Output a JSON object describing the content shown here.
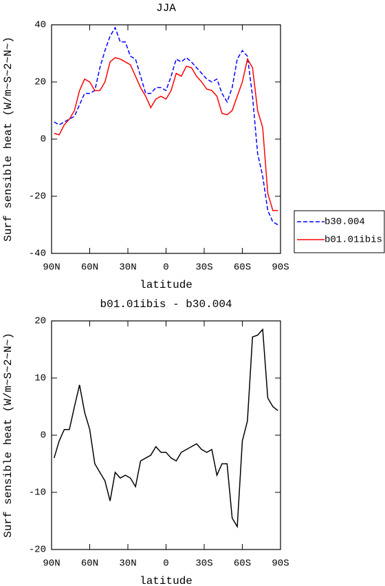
{
  "chart_data": [
    {
      "type": "line",
      "title": "JJA",
      "xlabel": "latitude",
      "ylabel": "Surf sensible heat (W/m~S~2~N~)",
      "x": [
        88,
        84,
        80,
        76,
        72,
        68,
        64,
        60,
        56,
        52,
        48,
        44,
        40,
        36,
        32,
        28,
        24,
        20,
        16,
        12,
        8,
        4,
        0,
        -4,
        -8,
        -12,
        -16,
        -20,
        -24,
        -28,
        -32,
        -36,
        -40,
        -44,
        -48,
        -52,
        -56,
        -60,
        -64,
        -68,
        -72,
        -76,
        -80,
        -84,
        -88
      ],
      "xlim": [
        90,
        -90
      ],
      "xticks": [
        {
          "value": 90,
          "label": "90N"
        },
        {
          "value": 60,
          "label": "60N"
        },
        {
          "value": 30,
          "label": "30N"
        },
        0,
        {
          "value": -30,
          "label": "30S"
        },
        {
          "value": -60,
          "label": "60S"
        },
        {
          "value": -90,
          "label": "90S"
        }
      ],
      "ylim": [
        -40,
        40
      ],
      "yticks": [
        -40,
        -20,
        0,
        20,
        40
      ],
      "legend": "right",
      "series": [
        {
          "name": "b30.004",
          "color": "#0000ff",
          "dash": true,
          "values": [
            6,
            5,
            6,
            7,
            8,
            12,
            16,
            16,
            17,
            25,
            31,
            36,
            39,
            34,
            34,
            29,
            28,
            22,
            16,
            16,
            18,
            18,
            17,
            22,
            28,
            27,
            28.5,
            27,
            25,
            23,
            21,
            20,
            21,
            16,
            13,
            18,
            28,
            31,
            29,
            15,
            -5,
            -13,
            -25,
            -29,
            -30
          ]
        },
        {
          "name": "b01.01ibis",
          "color": "#ff0000",
          "dash": false,
          "values": [
            2,
            1.5,
            5,
            7,
            10,
            17,
            21,
            20,
            17,
            17,
            20,
            27,
            28.5,
            28,
            27,
            26,
            22,
            18,
            15,
            11,
            14,
            15,
            14,
            17,
            23,
            22,
            25.5,
            25,
            22,
            20,
            17.5,
            17,
            15,
            9,
            8.5,
            10,
            15,
            20,
            28,
            25,
            10,
            4,
            -19,
            -25,
            -25
          ]
        }
      ]
    },
    {
      "type": "line",
      "title": "b01.01ibis - b30.004",
      "xlabel": "latitude",
      "ylabel": "Surf sensible heat (W/m~S~2~N~)",
      "x": [
        88,
        84,
        80,
        76,
        72,
        68,
        64,
        60,
        56,
        52,
        48,
        44,
        40,
        36,
        32,
        28,
        24,
        20,
        16,
        12,
        8,
        4,
        0,
        -4,
        -8,
        -12,
        -16,
        -20,
        -24,
        -28,
        -32,
        -36,
        -40,
        -44,
        -48,
        -52,
        -56,
        -60,
        -64,
        -68,
        -72,
        -76,
        -80,
        -84,
        -88
      ],
      "xlim": [
        90,
        -90
      ],
      "xticks": [
        {
          "value": 90,
          "label": "90N"
        },
        {
          "value": 60,
          "label": "60N"
        },
        {
          "value": 30,
          "label": "30N"
        },
        0,
        {
          "value": -30,
          "label": "30S"
        },
        {
          "value": -60,
          "label": "60S"
        },
        {
          "value": -90,
          "label": "90S"
        }
      ],
      "ylim": [
        -20,
        20
      ],
      "yticks": [
        -20,
        -10,
        0,
        10,
        20
      ],
      "series": [
        {
          "color": "#000000",
          "dash": false,
          "values": [
            -4,
            -1,
            1,
            1,
            5,
            8.8,
            4,
            1,
            -5,
            -6.5,
            -8,
            -11.5,
            -6.5,
            -7.5,
            -7,
            -7.5,
            -9,
            -4.5,
            -4,
            -3.5,
            -2,
            -3,
            -3,
            -4,
            -4.5,
            -3,
            -2.5,
            -2,
            -1.5,
            -2.5,
            -3,
            -2.5,
            -7,
            -5,
            -5,
            -14.5,
            -16,
            -1,
            2.5,
            17.2,
            17.5,
            18.5,
            6.5,
            5,
            4.3
          ]
        }
      ]
    }
  ]
}
